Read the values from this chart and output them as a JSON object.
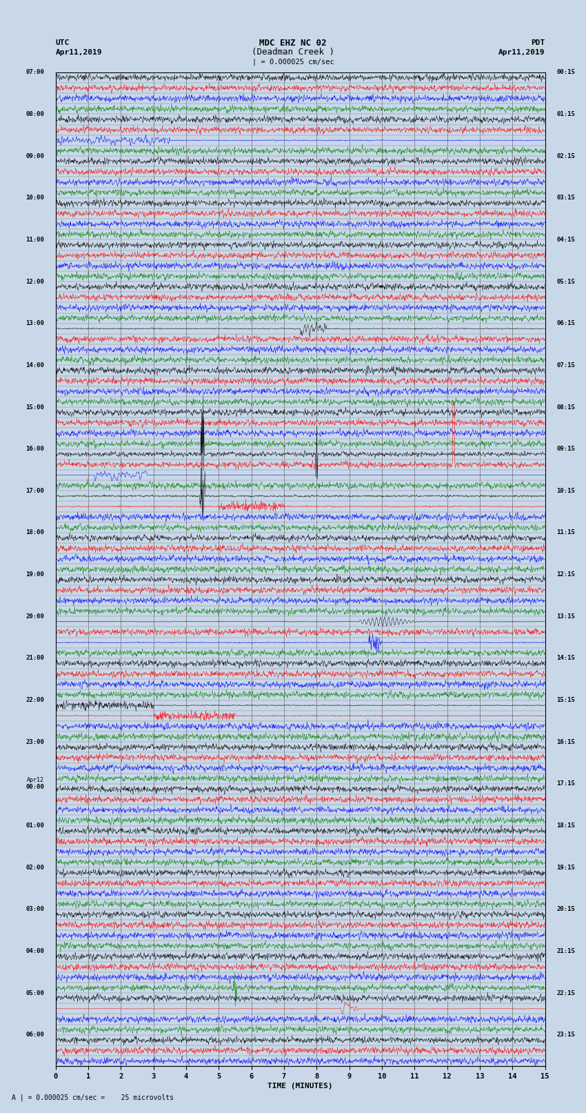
{
  "title_line1": "MDC EHZ NC 02",
  "title_line2": "(Deadman Creek )",
  "title_line3": "| = 0.000025 cm/sec",
  "label_left": "UTC",
  "label_left2": "Apr11,2019",
  "label_right": "PDT",
  "label_right2": "Apr11,2019",
  "xlabel": "TIME (MINUTES)",
  "footer": "A | = 0.000025 cm/sec =    25 microvolts",
  "x_ticks": [
    0,
    1,
    2,
    3,
    4,
    5,
    6,
    7,
    8,
    9,
    10,
    11,
    12,
    13,
    14,
    15
  ],
  "utc_times": [
    "07:00",
    "",
    "",
    "",
    "08:00",
    "",
    "",
    "",
    "09:00",
    "",
    "",
    "",
    "10:00",
    "",
    "",
    "",
    "11:00",
    "",
    "",
    "",
    "12:00",
    "",
    "",
    "",
    "13:00",
    "",
    "",
    "",
    "14:00",
    "",
    "",
    "",
    "15:00",
    "",
    "",
    "",
    "16:00",
    "",
    "",
    "",
    "17:00",
    "",
    "",
    "",
    "18:00",
    "",
    "",
    "",
    "19:00",
    "",
    "",
    "",
    "20:00",
    "",
    "",
    "",
    "21:00",
    "",
    "",
    "",
    "22:00",
    "",
    "",
    "",
    "23:00",
    "",
    "",
    "",
    "Apr12\n00:00",
    "",
    "",
    "",
    "01:00",
    "",
    "",
    "",
    "02:00",
    "",
    "",
    "",
    "03:00",
    "",
    "",
    "",
    "04:00",
    "",
    "",
    "",
    "05:00",
    "",
    "",
    "",
    "06:00",
    "",
    ""
  ],
  "pdt_times": [
    "00:15",
    "",
    "",
    "",
    "01:15",
    "",
    "",
    "",
    "02:15",
    "",
    "",
    "",
    "03:15",
    "",
    "",
    "",
    "04:15",
    "",
    "",
    "",
    "05:15",
    "",
    "",
    "",
    "06:15",
    "",
    "",
    "",
    "07:15",
    "",
    "",
    "",
    "08:15",
    "",
    "",
    "",
    "09:15",
    "",
    "",
    "",
    "10:15",
    "",
    "",
    "",
    "11:15",
    "",
    "",
    "",
    "12:15",
    "",
    "",
    "",
    "13:15",
    "",
    "",
    "",
    "14:15",
    "",
    "",
    "",
    "15:15",
    "",
    "",
    "",
    "16:15",
    "",
    "",
    "",
    "17:15",
    "",
    "",
    "",
    "18:15",
    "",
    "",
    "",
    "19:15",
    "",
    "",
    "",
    "20:15",
    "",
    "",
    "",
    "21:15",
    "",
    "",
    "",
    "22:15",
    "",
    "",
    "",
    "23:15",
    "",
    ""
  ],
  "num_rows": 95,
  "trace_color_cycle": [
    "black",
    "red",
    "blue",
    "green"
  ],
  "bg_color": "#c8d8e8",
  "plot_bg_color": "#c8d8e8",
  "grid_color": "#808080",
  "fig_width": 8.5,
  "fig_height": 16.13,
  "dpi": 100,
  "n_samples": 1500,
  "base_noise": 0.012,
  "sample_rate": 100
}
